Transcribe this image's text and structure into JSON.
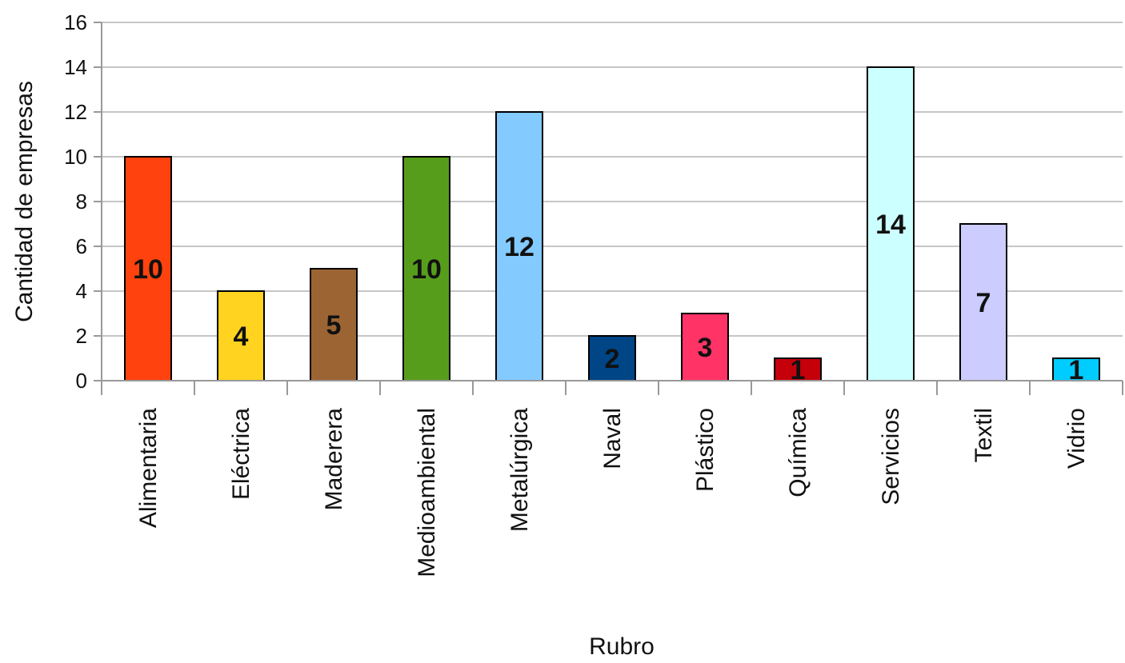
{
  "chart_data": {
    "type": "bar",
    "title": "",
    "xlabel": "Rubro",
    "ylabel": "Cantidad de empresas",
    "ylim": [
      0,
      16
    ],
    "yticks": [
      0,
      2,
      4,
      6,
      8,
      10,
      12,
      14,
      16
    ],
    "grid": true,
    "legend": "none",
    "categories": [
      "Alimentaria",
      "Eléctrica",
      "Maderera",
      "Medioambiental",
      "Metalúrgica",
      "Naval",
      "Plástico",
      "Química",
      "Servicios",
      "Textil",
      "Vidrio"
    ],
    "values": [
      10,
      4,
      5,
      10,
      12,
      2,
      3,
      1,
      14,
      7,
      1
    ],
    "data_labels": [
      "10",
      "4",
      "5",
      "10",
      "12",
      "2",
      "3",
      "1",
      "14",
      "7",
      "1"
    ],
    "colors": [
      "#ff420e",
      "#ffd320",
      "#9c6433",
      "#579d1c",
      "#83caff",
      "#004586",
      "#ff3366",
      "#c5000b",
      "#ccffff",
      "#ccccff",
      "#00ccff"
    ]
  }
}
